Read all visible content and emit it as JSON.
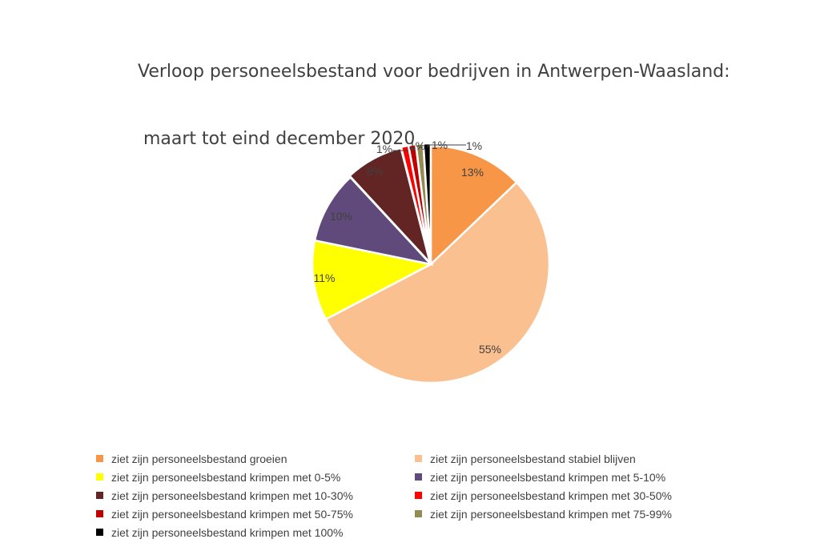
{
  "chart_data": {
    "type": "pie",
    "title": "Verloop personeelsbestand voor bedrijven in Antwerpen-Waasland:",
    "subtitle": " maart tot eind december 2020",
    "legend_position": "bottom",
    "slices": [
      {
        "name": "ziet zijn personeelsbestand groeien",
        "value": 13,
        "label": "13%",
        "color": "#F79646"
      },
      {
        "name": "ziet zijn personeelsbestand stabiel blijven",
        "value": 55,
        "label": "55%",
        "color": "#FAC090"
      },
      {
        "name": "ziet zijn personeelsbestand krimpen met 0-5%",
        "value": 11,
        "label": "11%",
        "color": "#FFFF00"
      },
      {
        "name": "ziet zijn personeelsbestand krimpen met 5-10%",
        "value": 10,
        "label": "10%",
        "color": "#604A7B"
      },
      {
        "name": "ziet zijn personeelsbestand krimpen met 10-30%",
        "value": 8,
        "label": "8%",
        "color": "#632523"
      },
      {
        "name": "ziet zijn personeelsbestand krimpen met 30-50%",
        "value": 1,
        "label": "1%",
        "color": "#FF0000"
      },
      {
        "name": "ziet zijn personeelsbestand krimpen met 50-75%",
        "value": 1,
        "label": "1%",
        "color": "#C00000"
      },
      {
        "name": "ziet zijn personeelsbestand krimpen met 75-99%",
        "value": 1,
        "label": "1%",
        "color": "#948A54"
      },
      {
        "name": "ziet zijn personeelsbestand krimpen met 100%",
        "value": 1,
        "label": "1%",
        "color": "#000000"
      }
    ]
  }
}
